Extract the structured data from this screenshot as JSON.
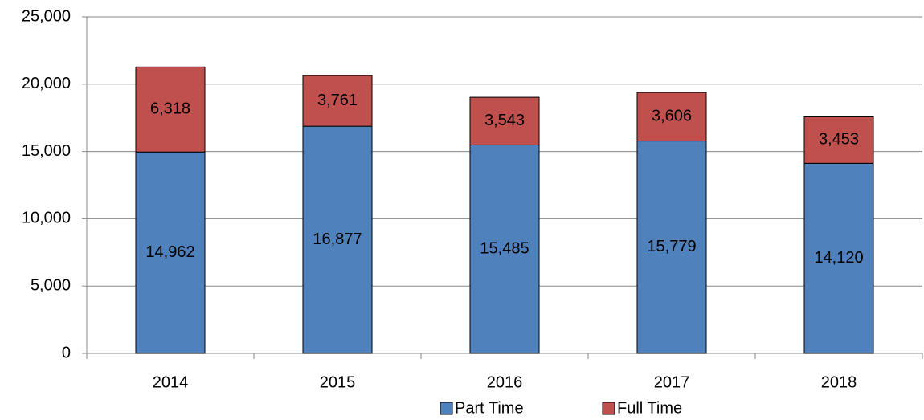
{
  "chart_data": {
    "type": "stacked_bar",
    "categories": [
      "2014",
      "2015",
      "2016",
      "2017",
      "2018"
    ],
    "series": [
      {
        "name": "Part Time",
        "color": "#4f81bd",
        "values": [
          14962,
          16877,
          15485,
          15779,
          14120
        ],
        "value_labels": [
          "14,962",
          "16,877",
          "15,485",
          "15,779",
          "14,120"
        ]
      },
      {
        "name": "Full Time",
        "color": "#c0504d",
        "values": [
          6318,
          3761,
          3543,
          3606,
          3453
        ],
        "value_labels": [
          "6,318",
          "3,761",
          "3,543",
          "3,606",
          "3,453"
        ]
      }
    ],
    "ylim": [
      0,
      25000
    ],
    "yticks": [
      0,
      {
        "value": 5000,
        "label": "5,000"
      },
      {
        "value": 10000,
        "label": "10,000"
      },
      {
        "value": 15000,
        "label": "15,000"
      },
      {
        "value": 20000,
        "label": "20,000"
      },
      {
        "value": 25000,
        "label": "25,000"
      }
    ],
    "grid": true,
    "legend": "bottom"
  }
}
